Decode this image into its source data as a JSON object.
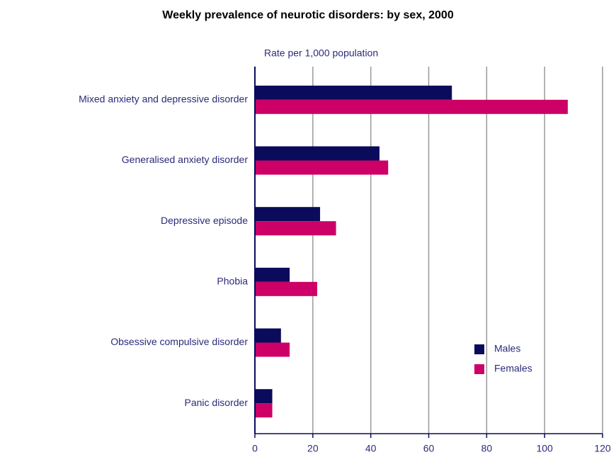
{
  "chart_data": {
    "type": "hbar",
    "title": "Weekly prevalence of neurotic disorders: by sex, 2000",
    "x_label": "Rate per 1,000 population",
    "categories": [
      "Mixed anxiety and depressive disorder",
      "Generalised anxiety disorder",
      "Depressive episode",
      "Phobia",
      "Obsessive compulsive disorder",
      "Panic disorder"
    ],
    "series": [
      {
        "name": "Males",
        "color": "#0b0b5c",
        "values": [
          68,
          43,
          22.5,
          12,
          9,
          6
        ]
      },
      {
        "name": "Females",
        "color": "#cc0066",
        "values": [
          108,
          46,
          28,
          21.5,
          12,
          6
        ]
      }
    ],
    "xlim": [
      0,
      120
    ],
    "xticks": [
      0,
      20,
      40,
      60,
      80,
      100,
      120
    ],
    "grid": true,
    "legend_position": "lower right"
  }
}
